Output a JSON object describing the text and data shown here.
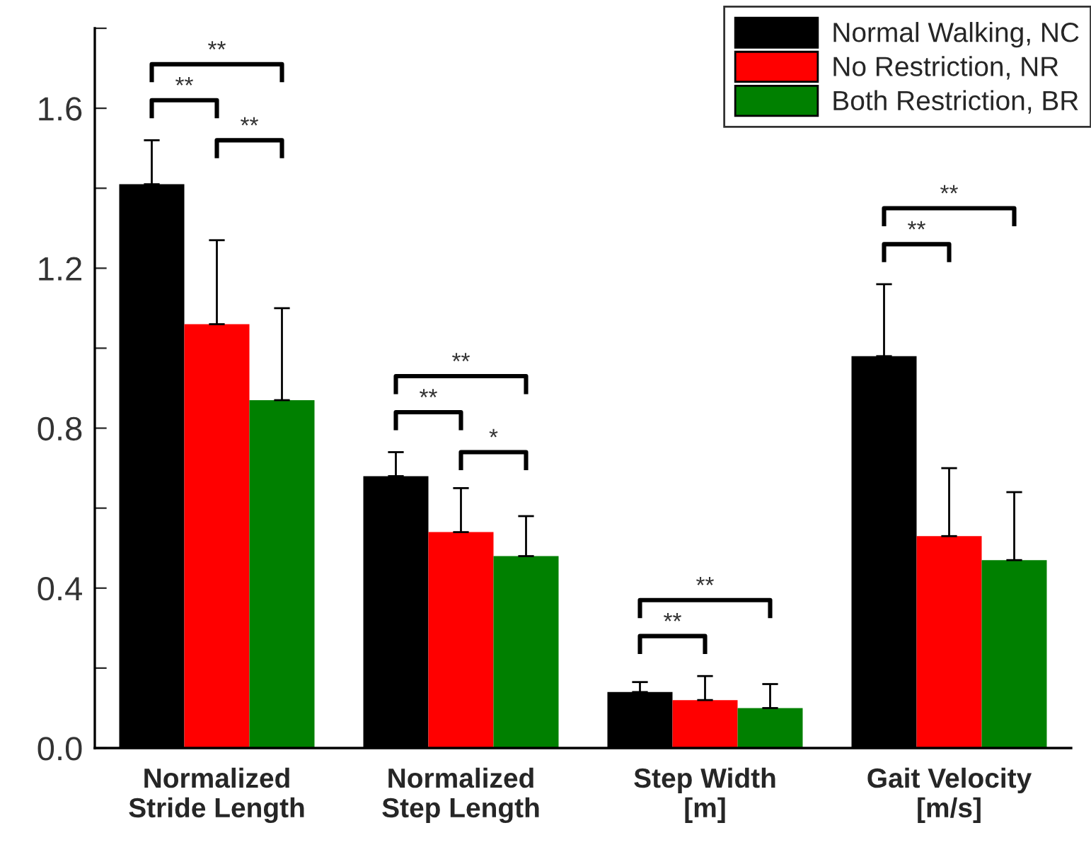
{
  "chart_data": {
    "type": "bar",
    "categories": [
      "Normalized\nStride Length",
      "Normalized\nStep Length",
      "Step Width\n[m]",
      "Gait Velocity\n[m/s]"
    ],
    "series": [
      {
        "name": "Normal Walking, NC",
        "color": "#000000",
        "values": [
          1.41,
          0.68,
          0.14,
          0.98
        ],
        "errors": [
          [
            1.41,
            1.52
          ],
          [
            0.68,
            0.74
          ],
          [
            0.14,
            0.165
          ],
          [
            0.98,
            1.16
          ]
        ]
      },
      {
        "name": "No Restriction, NR",
        "color": "#ff0000",
        "values": [
          1.06,
          0.54,
          0.12,
          0.53
        ],
        "errors": [
          [
            1.06,
            1.27
          ],
          [
            0.54,
            0.65
          ],
          [
            0.12,
            0.18
          ],
          [
            0.53,
            0.7
          ]
        ]
      },
      {
        "name": "Both Restriction, BR",
        "color": "#008000",
        "values": [
          0.87,
          0.48,
          0.1,
          0.47
        ],
        "errors": [
          [
            0.87,
            1.1
          ],
          [
            0.48,
            0.58
          ],
          [
            0.1,
            0.16
          ],
          [
            0.47,
            0.64
          ]
        ]
      }
    ],
    "ylim": [
      0,
      1.8
    ],
    "yticks": [
      {
        "value": 0,
        "label": "0.0"
      },
      {
        "value": 0.2,
        "label": null
      },
      {
        "value": 0.4,
        "label": "0.4"
      },
      {
        "value": 0.6,
        "label": null
      },
      {
        "value": 0.8,
        "label": "0.8"
      },
      {
        "value": 1.0,
        "label": null
      },
      {
        "value": 1.2,
        "label": "1.2"
      },
      {
        "value": 1.4,
        "label": null
      },
      {
        "value": 1.6,
        "label": "1.6"
      },
      {
        "value": 1.8,
        "label": null
      }
    ],
    "annotations": [
      "**",
      "**",
      "**",
      "**",
      "**",
      "*",
      "**",
      "**",
      "**",
      "**"
    ],
    "legend": "top right",
    "grid": false
  }
}
